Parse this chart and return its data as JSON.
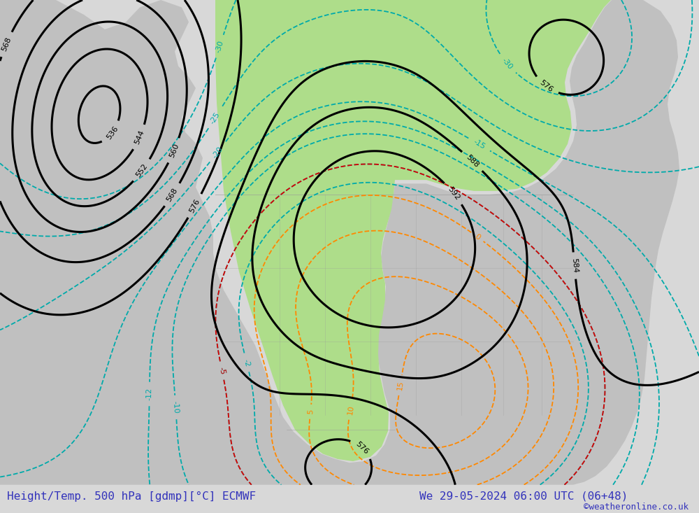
{
  "title_left": "Height/Temp. 500 hPa [gdmp][°C] ECMWF",
  "title_right": "We 29-05-2024 06:00 UTC (06+48)",
  "credit": "©weatheronline.co.uk",
  "background_color": "#d8d8d8",
  "map_bg_color": "#d0d0d0",
  "land_color": "#c0c0c0",
  "green_fill_color": "#aedd8a",
  "title_color": "#3333bb",
  "fig_width": 10.0,
  "fig_height": 7.33,
  "dpi": 100,
  "geopotential_color": "#000000",
  "temp_warm_color": "#ff8800",
  "temp_cold_color": "#dd0000",
  "temp_cool_color": "#00aaaa",
  "geop_linewidth": 2.2,
  "temp_linewidth": 1.3,
  "label_fontsize": 8
}
